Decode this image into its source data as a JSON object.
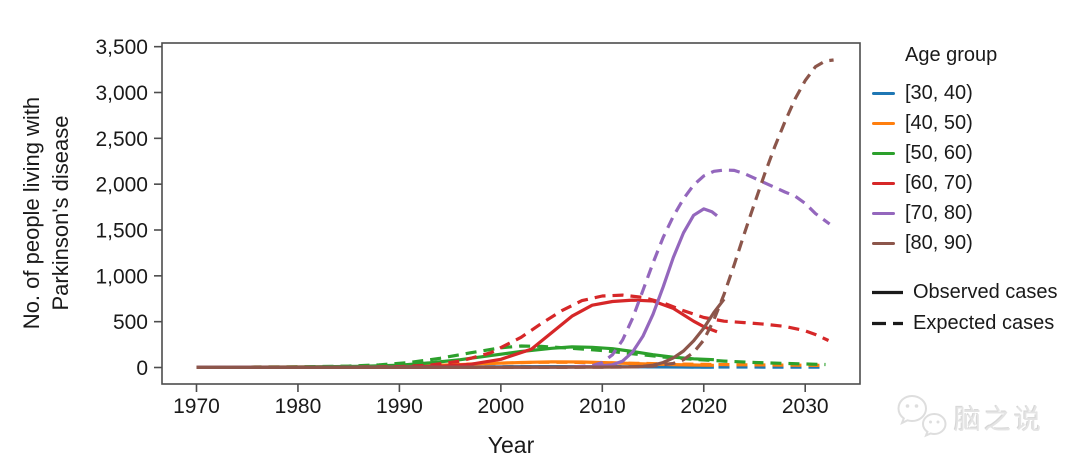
{
  "figure": {
    "ylabel_lines": [
      "No. of people living with",
      "Parkinson's disease"
    ],
    "xlabel": "Year"
  },
  "legend": {
    "title": "Age group",
    "entries": [
      {
        "label": "[30, 40)",
        "color": "#1f77b4"
      },
      {
        "label": "[40, 50)",
        "color": "#ff7f0e"
      },
      {
        "label": "[50, 60)",
        "color": "#2ca02c"
      },
      {
        "label": "[60, 70)",
        "color": "#d62728"
      },
      {
        "label": "[70, 80)",
        "color": "#9467bd"
      },
      {
        "label": "[80, 90)",
        "color": "#8c564b"
      }
    ],
    "styles": [
      {
        "label": "Observed cases",
        "dash": "solid",
        "color": "#1a1a1a"
      },
      {
        "label": "Expected cases",
        "dash": "dashed",
        "color": "#1a1a1a"
      }
    ]
  },
  "watermark": {
    "text": "脑之说",
    "icon": "wechat-bubbles-icon",
    "color": "#e0e0e0"
  },
  "chart_data": {
    "type": "line",
    "title": "",
    "xlabel": "Year",
    "ylabel": "No. of people living with Parkinson's disease",
    "legend_position": "right",
    "grid": false,
    "axis_color": "#4d4d4d",
    "xlim": [
      1966.6,
      2035.4
    ],
    "ylim": [
      -180,
      3540
    ],
    "x_ticks": [
      1970,
      1980,
      1990,
      2000,
      2010,
      2020,
      2030
    ],
    "x_tick_labels": [
      "1970",
      "1980",
      "1990",
      "2000",
      "2010",
      "2020",
      "2030"
    ],
    "y_ticks": [
      0,
      500,
      1000,
      1500,
      2000,
      2500,
      3000,
      3500
    ],
    "y_tick_labels": [
      "0",
      "500",
      "1,000",
      "1,500",
      "2,000",
      "2,500",
      "3,000",
      "3,500"
    ],
    "series": [
      {
        "name": "[30, 40)",
        "color": "#1f77b4",
        "observed": {
          "x": [
            1970,
            1975,
            1980,
            1985,
            1990,
            1995,
            2000,
            2005,
            2010,
            2015,
            2020,
            2021
          ],
          "y": [
            2,
            2,
            3,
            3,
            4,
            5,
            8,
            10,
            9,
            6,
            4,
            4
          ]
        },
        "expected": {
          "x": [
            1970,
            1975,
            1980,
            1985,
            1990,
            1995,
            2000,
            2005,
            2010,
            2015,
            2020,
            2026,
            2032
          ],
          "y": [
            2,
            3,
            3,
            4,
            5,
            6,
            8,
            10,
            9,
            7,
            5,
            4,
            4
          ]
        }
      },
      {
        "name": "[40, 50)",
        "color": "#ff7f0e",
        "observed": {
          "x": [
            1970,
            1975,
            1980,
            1985,
            1990,
            1994,
            1998,
            2002,
            2005,
            2008,
            2011,
            2014,
            2017,
            2019,
            2021
          ],
          "y": [
            3,
            4,
            5,
            8,
            15,
            25,
            40,
            55,
            62,
            60,
            50,
            40,
            32,
            27,
            24
          ]
        },
        "expected": {
          "x": [
            1970,
            1980,
            1988,
            1994,
            2000,
            2004,
            2008,
            2012,
            2016,
            2020,
            2024,
            2028,
            2032
          ],
          "y": [
            3,
            6,
            14,
            28,
            48,
            58,
            56,
            48,
            40,
            34,
            30,
            26,
            23
          ]
        }
      },
      {
        "name": "[50, 60)",
        "color": "#2ca02c",
        "observed": {
          "x": [
            1970,
            1980,
            1986,
            1990,
            1993,
            1996,
            1999,
            2002,
            2005,
            2007,
            2009,
            2011,
            2013,
            2015,
            2017,
            2019,
            2021
          ],
          "y": [
            3,
            5,
            12,
            25,
            50,
            85,
            130,
            175,
            210,
            225,
            220,
            205,
            175,
            140,
            112,
            95,
            85
          ]
        },
        "expected": {
          "x": [
            1970,
            1980,
            1985,
            1988,
            1991,
            1994,
            1997,
            2000,
            2002,
            2004,
            2007,
            2010,
            2013,
            2016,
            2019,
            2022,
            2025,
            2028,
            2030,
            2032
          ],
          "y": [
            3,
            6,
            15,
            28,
            55,
            100,
            160,
            215,
            235,
            230,
            210,
            185,
            150,
            115,
            90,
            70,
            55,
            45,
            38,
            33
          ]
        }
      },
      {
        "name": "[60, 70)",
        "color": "#d62728",
        "observed": {
          "x": [
            1970,
            1985,
            1990,
            1994,
            1997,
            2000,
            2003,
            2005,
            2007,
            2009,
            2011,
            2013,
            2015,
            2017,
            2019,
            2020,
            2021.3
          ],
          "y": [
            2,
            3,
            5,
            12,
            35,
            90,
            200,
            380,
            560,
            680,
            720,
            735,
            725,
            645,
            505,
            445,
            390
          ]
        },
        "expected": {
          "x": [
            1970,
            1985,
            1990,
            1993,
            1996,
            1999,
            2002,
            2004,
            2006,
            2008,
            2010,
            2012,
            2014,
            2016,
            2018,
            2020,
            2022,
            2024,
            2026,
            2028,
            2030,
            2031,
            2032.3
          ],
          "y": [
            2,
            4,
            10,
            25,
            70,
            160,
            330,
            480,
            620,
            730,
            780,
            790,
            765,
            705,
            620,
            545,
            505,
            490,
            472,
            448,
            400,
            360,
            295
          ]
        }
      },
      {
        "name": "[70, 80)",
        "color": "#9467bd",
        "observed": {
          "x": [
            1970,
            2000,
            2006,
            2009,
            2011,
            2012,
            2013,
            2014,
            2015,
            2016,
            2017,
            2018,
            2019,
            2020,
            2020.8,
            2021.3
          ],
          "y": [
            1,
            2,
            4,
            10,
            30,
            70,
            170,
            340,
            580,
            880,
            1200,
            1470,
            1660,
            1730,
            1700,
            1655
          ]
        },
        "expected": {
          "x": [
            1970,
            2004,
            2007,
            2009,
            2010,
            2011,
            2012,
            2013,
            2014,
            2015,
            2016,
            2017,
            2018,
            2019,
            2020,
            2021,
            2022,
            2023,
            2024,
            2025,
            2026,
            2027,
            2028,
            2029,
            2030,
            2031,
            2032.4
          ],
          "y": [
            1,
            2,
            6,
            20,
            55,
            140,
            300,
            540,
            840,
            1140,
            1420,
            1650,
            1840,
            1990,
            2090,
            2140,
            2155,
            2150,
            2115,
            2065,
            2015,
            1965,
            1915,
            1870,
            1790,
            1680,
            1565
          ]
        }
      },
      {
        "name": "[80, 90)",
        "color": "#8c564b",
        "observed": {
          "x": [
            1970,
            2000,
            2010,
            2013,
            2014,
            2015,
            2016,
            2017,
            2018,
            2019,
            2020,
            2021,
            2022
          ],
          "y": [
            1,
            2,
            4,
            7,
            12,
            25,
            55,
            105,
            180,
            290,
            430,
            600,
            745
          ]
        },
        "expected": {
          "x": [
            1970,
            2006,
            2012,
            2015,
            2017,
            2018,
            2019,
            2020,
            2021,
            2022,
            2023,
            2024,
            2025,
            2026,
            2027,
            2028,
            2029,
            2030,
            2031,
            2032,
            2032.8
          ],
          "y": [
            1,
            2,
            5,
            15,
            45,
            85,
            165,
            300,
            520,
            800,
            1120,
            1460,
            1790,
            2110,
            2410,
            2680,
            2930,
            3130,
            3280,
            3345,
            3355
          ]
        }
      }
    ]
  }
}
